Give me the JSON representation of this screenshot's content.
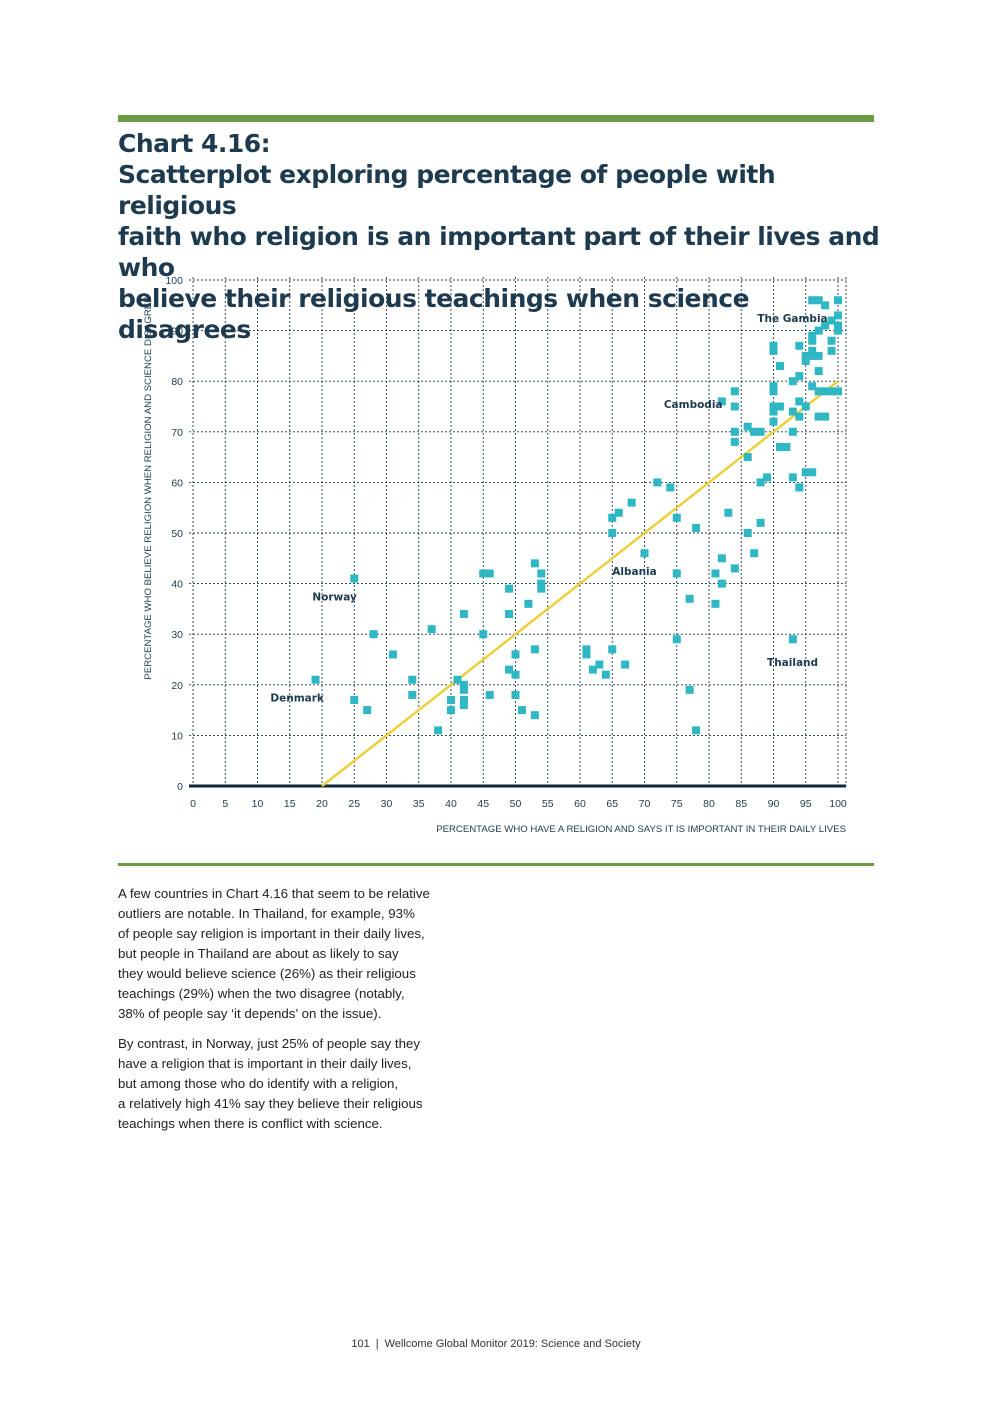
{
  "heading": {
    "label": "Chart 4.16:",
    "lines": [
      "Scatterplot exploring percentage of people with religious",
      "faith who religion is an important part of their lives and who",
      "believe their religious teachings when science disagrees"
    ]
  },
  "chart_data": {
    "type": "scatter",
    "xlabel": "PERCENTAGE WHO HAVE A RELIGION AND SAYS IT IS IMPORTANT IN THEIR DAILY LIVES",
    "ylabel": "PERCENTAGE WHO BELIEVE RELIGION WHEN RELIGION AND SCIENCE DISAGREE",
    "xlim": [
      0,
      100
    ],
    "ylim": [
      0,
      100
    ],
    "x_ticks": [
      "0",
      "5",
      "10",
      "15",
      "20",
      "25",
      "30",
      "35",
      "40",
      "45",
      "50",
      "55",
      "60",
      "65",
      "70",
      "75",
      "80",
      "85",
      "90",
      "95",
      "100"
    ],
    "y_ticks": [
      "0",
      "10",
      "20",
      "30",
      "40",
      "50",
      "60",
      "70",
      "80",
      "90",
      "100"
    ],
    "grid": true,
    "point_color": "#2fb7c4",
    "trend_line": {
      "x": [
        20,
        100
      ],
      "y": [
        0,
        80
      ],
      "color": "#eecf3a"
    },
    "points": [
      [
        19,
        21
      ],
      [
        25,
        41
      ],
      [
        25,
        17
      ],
      [
        27,
        15
      ],
      [
        28,
        30
      ],
      [
        31,
        26
      ],
      [
        34,
        21
      ],
      [
        34,
        18
      ],
      [
        37,
        31
      ],
      [
        38,
        11
      ],
      [
        40,
        17
      ],
      [
        40,
        15
      ],
      [
        41,
        21
      ],
      [
        42,
        20
      ],
      [
        42,
        19
      ],
      [
        42,
        17
      ],
      [
        42,
        16
      ],
      [
        42,
        34
      ],
      [
        45,
        42
      ],
      [
        45,
        30
      ],
      [
        46,
        42
      ],
      [
        46,
        18
      ],
      [
        49,
        39
      ],
      [
        49,
        34
      ],
      [
        49,
        23
      ],
      [
        50,
        26
      ],
      [
        50,
        22
      ],
      [
        50,
        18
      ],
      [
        51,
        15
      ],
      [
        52,
        36
      ],
      [
        53,
        44
      ],
      [
        53,
        27
      ],
      [
        53,
        14
      ],
      [
        54,
        42
      ],
      [
        54,
        40
      ],
      [
        54,
        39
      ],
      [
        61,
        27
      ],
      [
        61,
        26
      ],
      [
        62,
        23
      ],
      [
        63,
        24
      ],
      [
        64,
        22
      ],
      [
        65,
        53
      ],
      [
        65,
        50
      ],
      [
        65,
        27
      ],
      [
        66,
        54
      ],
      [
        67,
        24
      ],
      [
        68,
        56
      ],
      [
        70,
        46
      ],
      [
        72,
        60
      ],
      [
        74,
        59
      ],
      [
        75,
        53
      ],
      [
        75,
        42
      ],
      [
        75,
        29
      ],
      [
        77,
        37
      ],
      [
        77,
        19
      ],
      [
        78,
        51
      ],
      [
        78,
        11
      ],
      [
        81,
        42
      ],
      [
        81,
        36
      ],
      [
        82,
        76
      ],
      [
        82,
        45
      ],
      [
        82,
        40
      ],
      [
        83,
        54
      ],
      [
        84,
        78
      ],
      [
        84,
        75
      ],
      [
        84,
        70
      ],
      [
        84,
        68
      ],
      [
        84,
        43
      ],
      [
        86,
        71
      ],
      [
        86,
        65
      ],
      [
        86,
        50
      ],
      [
        87,
        70
      ],
      [
        87,
        46
      ],
      [
        88,
        70
      ],
      [
        88,
        60
      ],
      [
        88,
        52
      ],
      [
        89,
        61
      ],
      [
        90,
        87
      ],
      [
        90,
        86
      ],
      [
        90,
        79
      ],
      [
        90,
        78
      ],
      [
        90,
        75
      ],
      [
        90,
        74
      ],
      [
        90,
        72
      ],
      [
        91,
        83
      ],
      [
        91,
        75
      ],
      [
        91,
        67
      ],
      [
        92,
        67
      ],
      [
        93,
        80
      ],
      [
        93,
        74
      ],
      [
        93,
        70
      ],
      [
        93,
        61
      ],
      [
        93,
        29
      ],
      [
        94,
        87
      ],
      [
        94,
        81
      ],
      [
        94,
        76
      ],
      [
        94,
        73
      ],
      [
        94,
        59
      ],
      [
        95,
        85
      ],
      [
        95,
        84
      ],
      [
        95,
        75
      ],
      [
        95,
        62
      ],
      [
        96,
        96
      ],
      [
        96,
        89
      ],
      [
        96,
        88
      ],
      [
        96,
        86
      ],
      [
        96,
        85
      ],
      [
        96,
        79
      ],
      [
        96,
        62
      ],
      [
        97,
        96
      ],
      [
        97,
        90
      ],
      [
        97,
        85
      ],
      [
        97,
        82
      ],
      [
        97,
        78
      ],
      [
        97,
        73
      ],
      [
        98,
        95
      ],
      [
        98,
        91
      ],
      [
        98,
        78
      ],
      [
        98,
        73
      ],
      [
        99,
        92
      ],
      [
        99,
        88
      ],
      [
        99,
        86
      ],
      [
        99,
        78
      ],
      [
        100,
        96
      ],
      [
        100,
        93
      ],
      [
        100,
        91
      ],
      [
        100,
        90
      ],
      [
        100,
        78
      ]
    ],
    "annotations": [
      {
        "text": "The Gambia",
        "x": 87.5,
        "y": 92.5
      },
      {
        "text": "Cambodia",
        "x": 73,
        "y": 75.5
      },
      {
        "text": "Albania",
        "x": 65,
        "y": 42.5
      },
      {
        "text": "Norway",
        "x": 18.5,
        "y": 37.5
      },
      {
        "text": "Thailand",
        "x": 89,
        "y": 24.5
      },
      {
        "text": "Denmark",
        "x": 12,
        "y": 17.5
      }
    ]
  },
  "body": {
    "paragraph_1": [
      "A few countries in Chart 4.16 that seem to be relative",
      "outliers are notable. In Thailand, for example, 93%",
      "of people say religion is important in their daily lives,",
      "but people in Thailand are about as likely to say",
      "they would believe science (26%) as their religious",
      "teachings (29%) when the two disagree (notably,",
      "38% of people say ‘it depends’ on the issue)."
    ],
    "paragraph_2": [
      "By contrast, in Norway, just 25% of people say they",
      "have a religion that is important in their daily lives,",
      "but among those who do identify with a religion,",
      "a relatively high 41% say they believe their religious",
      "teachings when there is conflict with science."
    ]
  },
  "footer": {
    "page_number": "101",
    "separator": "|",
    "publication": "Wellcome Global Monitor 2019: Science and Society"
  }
}
